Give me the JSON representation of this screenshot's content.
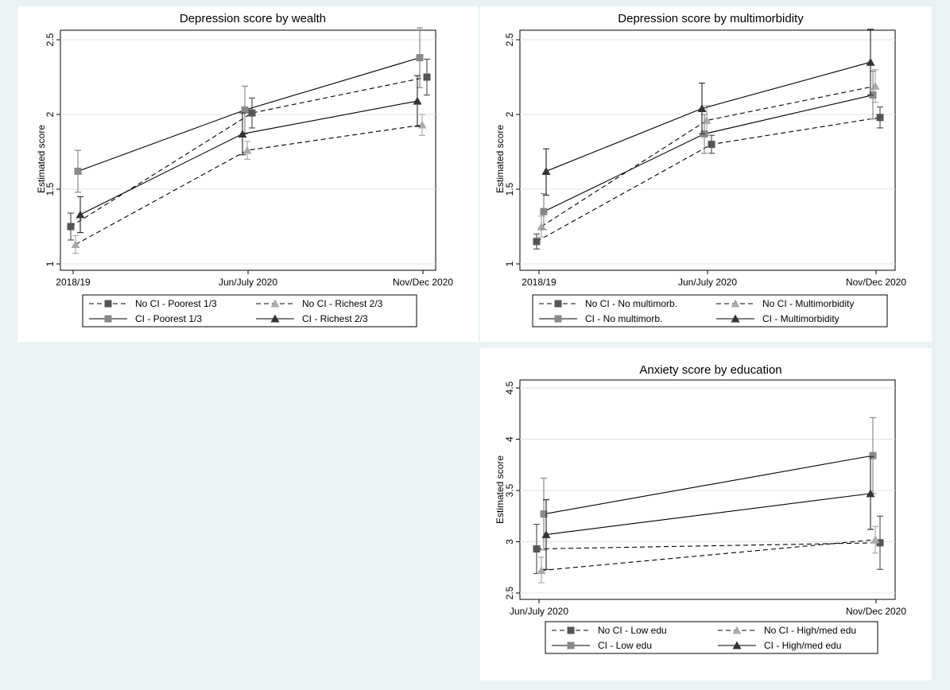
{
  "chart_data": [
    {
      "type": "line",
      "title": "Depression score by wealth",
      "ylabel": "Estimated score",
      "xlabel": "",
      "categories": [
        "2018/19",
        "Jun/July 2020",
        "Nov/Dec 2020"
      ],
      "ylim": [
        1,
        2.5
      ],
      "yticks": [
        "1",
        "1.5",
        "2",
        "2.5"
      ],
      "grid": true,
      "legend_placement": "bottom",
      "series": [
        {
          "name": "No CI - Poorest 1/3",
          "values": [
            1.25,
            2.01,
            2.25
          ],
          "ci_low": [
            1.16,
            1.91,
            2.13
          ],
          "ci_high": [
            1.34,
            2.11,
            2.37
          ],
          "dash": true,
          "marker": "square",
          "color": "#555555"
        },
        {
          "name": "No CI - Richest 2/3",
          "values": [
            1.13,
            1.76,
            1.93
          ],
          "ci_low": [
            1.07,
            1.7,
            1.86
          ],
          "ci_high": [
            1.19,
            1.82,
            2.0
          ],
          "dash": true,
          "marker": "triangle",
          "color": "#aaaaaa"
        },
        {
          "name": "CI - Poorest 1/3",
          "values": [
            1.62,
            2.03,
            2.38
          ],
          "ci_low": [
            1.48,
            1.87,
            2.18
          ],
          "ci_high": [
            1.76,
            2.19,
            2.58
          ],
          "dash": false,
          "marker": "square",
          "color": "#888888"
        },
        {
          "name": "CI - Richest 2/3",
          "values": [
            1.33,
            1.87,
            2.09
          ],
          "ci_low": [
            1.21,
            1.73,
            1.92
          ],
          "ci_high": [
            1.45,
            2.01,
            2.26
          ],
          "dash": false,
          "marker": "triangle",
          "color": "#333333"
        }
      ]
    },
    {
      "type": "line",
      "title": "Depression score by multimorbidity",
      "ylabel": "Estimated score",
      "xlabel": "",
      "categories": [
        "2018/19",
        "Jun/July 2020",
        "Nov/Dec 2020"
      ],
      "ylim": [
        1,
        2.5
      ],
      "yticks": [
        "1",
        "1.5",
        "2",
        "2.5"
      ],
      "grid": true,
      "legend_placement": "bottom",
      "series": [
        {
          "name": "No CI - No multimorb.",
          "values": [
            1.15,
            1.8,
            1.98
          ],
          "ci_low": [
            1.1,
            1.74,
            1.91
          ],
          "ci_high": [
            1.2,
            1.86,
            2.05
          ],
          "dash": true,
          "marker": "square",
          "color": "#555555"
        },
        {
          "name": "No CI - Multimorbidity",
          "values": [
            1.25,
            1.96,
            2.19
          ],
          "ci_low": [
            1.18,
            1.86,
            2.08
          ],
          "ci_high": [
            1.32,
            2.06,
            2.3
          ],
          "dash": true,
          "marker": "triangle",
          "color": "#aaaaaa"
        },
        {
          "name": "CI - No multimorb.",
          "values": [
            1.35,
            1.87,
            2.13
          ],
          "ci_low": [
            1.23,
            1.74,
            1.97
          ],
          "ci_high": [
            1.47,
            2.0,
            2.29
          ],
          "dash": false,
          "marker": "square",
          "color": "#888888"
        },
        {
          "name": "CI - Multimorbidity",
          "values": [
            1.62,
            2.04,
            2.35
          ],
          "ci_low": [
            1.46,
            1.87,
            2.13
          ],
          "ci_high": [
            1.77,
            2.21,
            2.57
          ],
          "dash": false,
          "marker": "triangle",
          "color": "#333333"
        }
      ]
    },
    {
      "type": "line",
      "title": "Anxiety score by education",
      "ylabel": "Estimated score",
      "xlabel": "",
      "categories": [
        "Jun/July 2020",
        "Nov/Dec 2020"
      ],
      "ylim": [
        2.5,
        4.5
      ],
      "yticks": [
        "2.5",
        "3",
        "3.5",
        "4",
        "4.5"
      ],
      "grid": true,
      "legend_placement": "bottom",
      "series": [
        {
          "name": "No CI - Low edu",
          "values": [
            2.93,
            2.99
          ],
          "ci_low": [
            2.69,
            2.73
          ],
          "ci_high": [
            3.17,
            3.25
          ],
          "dash": true,
          "marker": "square",
          "color": "#555555"
        },
        {
          "name": "No CI - High/med edu",
          "values": [
            2.72,
            3.02
          ],
          "ci_low": [
            2.6,
            2.89
          ],
          "ci_high": [
            2.85,
            3.15
          ],
          "dash": true,
          "marker": "triangle",
          "color": "#aaaaaa"
        },
        {
          "name": "CI - Low edu",
          "values": [
            3.27,
            3.84
          ],
          "ci_low": [
            2.92,
            3.47
          ],
          "ci_high": [
            3.62,
            4.21
          ],
          "dash": false,
          "marker": "square",
          "color": "#888888"
        },
        {
          "name": "CI - High/med edu",
          "values": [
            3.07,
            3.47
          ],
          "ci_low": [
            2.73,
            3.12
          ],
          "ci_high": [
            3.41,
            3.83
          ],
          "dash": false,
          "marker": "triangle",
          "color": "#333333"
        }
      ]
    }
  ]
}
